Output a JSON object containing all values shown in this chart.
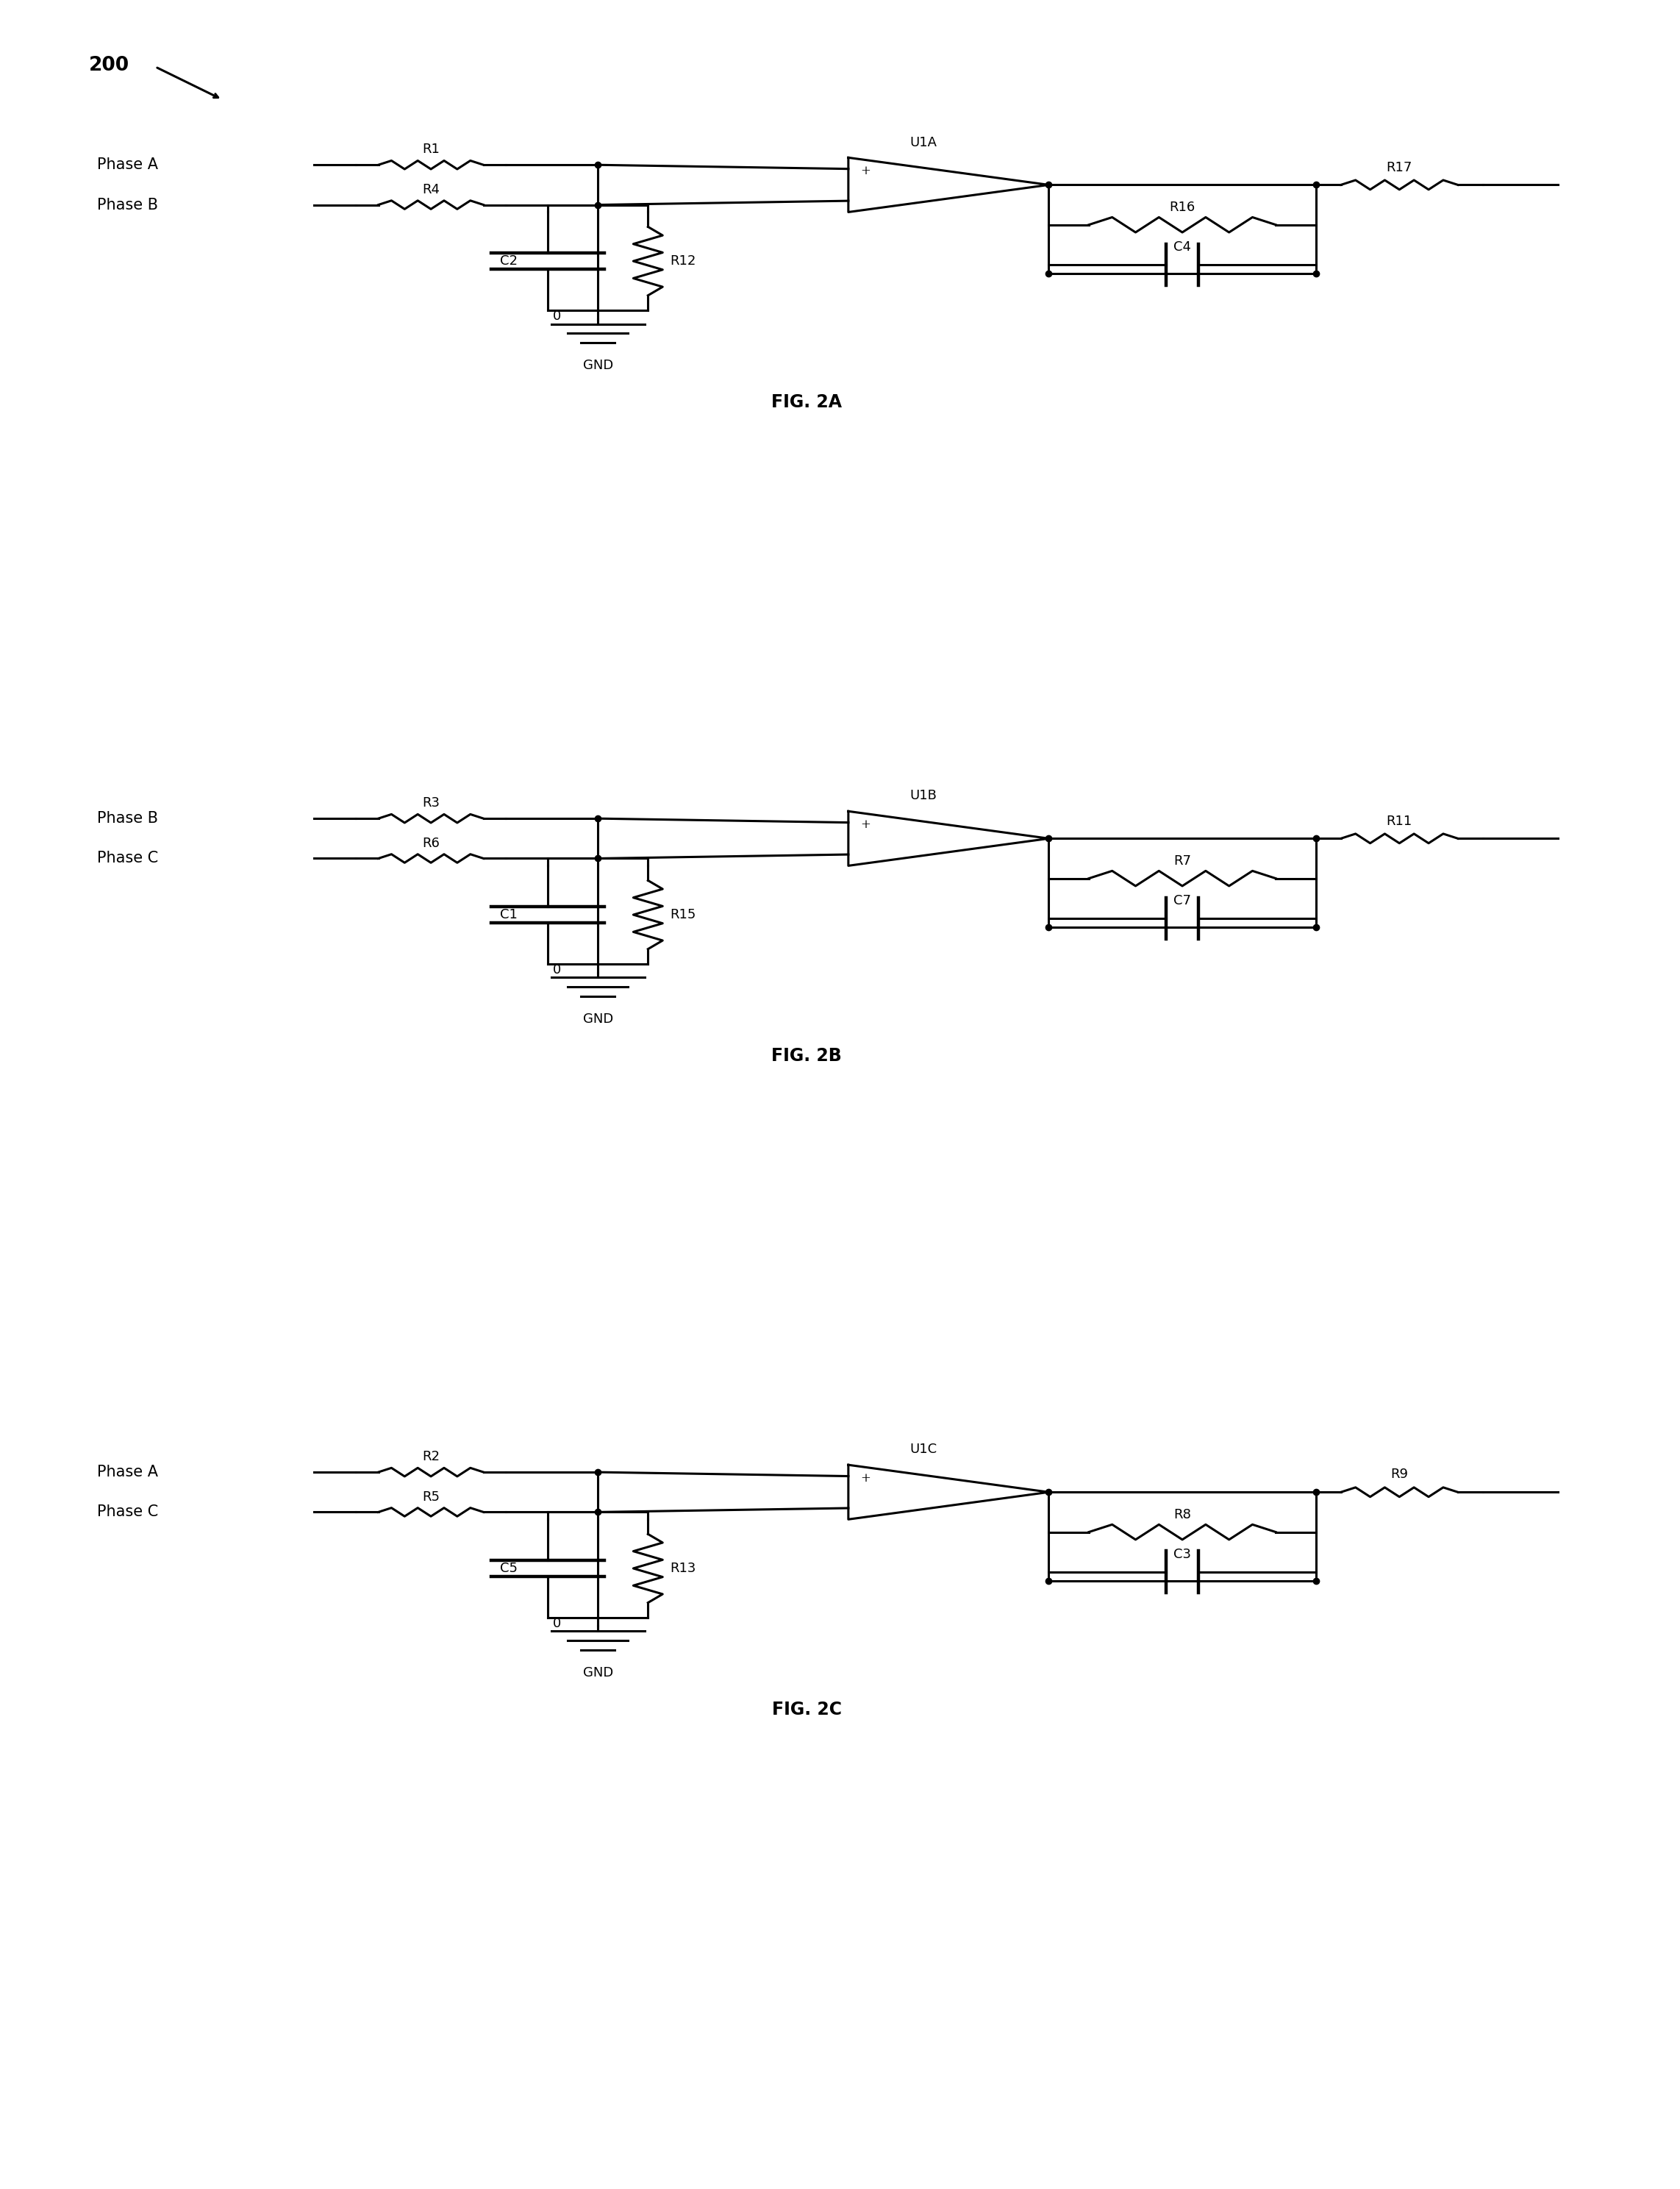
{
  "background_color": "#ffffff",
  "fig_width": 22.85,
  "fig_height": 29.77,
  "figures": [
    {
      "label": "FIG. 2A",
      "phase1_label": "Phase A",
      "phase1_resistor": "R1",
      "phase2_label": "Phase B",
      "phase2_resistor": "R4",
      "cap_label": "C2",
      "res_mid_label": "R12",
      "opamp_label": "U1A",
      "feedback_res_label": "R16",
      "feedback_cap_label": "C4",
      "out_resistor": "R17",
      "gnd_label": "GND",
      "gnd_num": "0"
    },
    {
      "label": "FIG. 2B",
      "phase1_label": "Phase B",
      "phase1_resistor": "R3",
      "phase2_label": "Phase C",
      "phase2_resistor": "R6",
      "cap_label": "C1",
      "res_mid_label": "R15",
      "opamp_label": "U1B",
      "feedback_res_label": "R7",
      "feedback_cap_label": "C7",
      "out_resistor": "R11",
      "gnd_label": "GND",
      "gnd_num": "0"
    },
    {
      "label": "FIG. 2C",
      "phase1_label": "Phase A",
      "phase1_resistor": "R2",
      "phase2_label": "Phase C",
      "phase2_resistor": "R5",
      "cap_label": "C5",
      "res_mid_label": "R13",
      "opamp_label": "U1C",
      "feedback_res_label": "R8",
      "feedback_cap_label": "C3",
      "out_resistor": "R9",
      "gnd_label": "GND",
      "gnd_num": "0"
    }
  ],
  "ref_label": "200",
  "line_color": "#000000",
  "line_width": 2.2,
  "font_size": 13,
  "label_font_size": 15,
  "fig_label_font_size": 17
}
